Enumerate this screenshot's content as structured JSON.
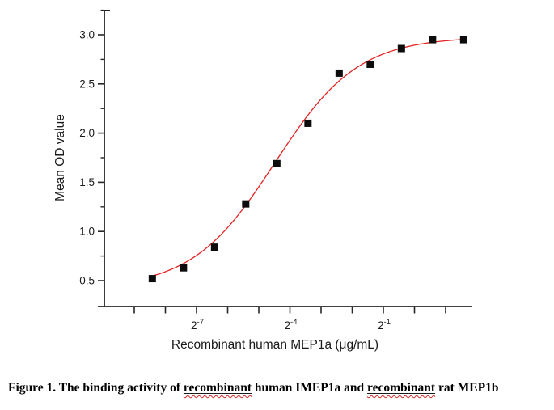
{
  "figure_caption": {
    "part1": "Figure 1. The binding activity of ",
    "flagged_word_1": "recombinant",
    "part2": " human IMEP1a and ",
    "flagged_word_2": "recombinant",
    "part3": " rat MEP1b",
    "squiggle_color": "#d42a2a"
  },
  "chart_data": {
    "type": "scatter",
    "title": "",
    "xlabel": "Recombinant human MEP1a (μg/mL)",
    "ylabel": "Mean OD value",
    "x_scale": "log2",
    "grid": "off",
    "legend": "none",
    "xlim_log2": [
      -10.2,
      1.85
    ],
    "ylim": [
      0.23,
      3.25
    ],
    "x_axis": {
      "tick_log2": [
        -9,
        -8,
        -7,
        -6,
        -5,
        -4,
        -3,
        -2,
        -1,
        0,
        1
      ],
      "labeled_ticks": [
        {
          "log2": -7,
          "base": "2",
          "exp": "-7"
        },
        {
          "log2": -4,
          "base": "2",
          "exp": "-4"
        },
        {
          "log2": -1,
          "base": "2",
          "exp": "-1"
        }
      ]
    },
    "y_axis": {
      "major_ticks": [
        0.5,
        1.0,
        1.5,
        2.0,
        2.5,
        3.0
      ],
      "minor_ticks": [
        0.75,
        1.25,
        1.75,
        2.25,
        2.75,
        3.25
      ]
    },
    "series": [
      {
        "name": "Recombinant human MEP1a",
        "marker": "filled-square",
        "points": [
          {
            "conc_ug_ml": 0.0029,
            "log2_conc": -8.42,
            "od": 0.52
          },
          {
            "conc_ug_ml": 0.0059,
            "log2_conc": -7.42,
            "od": 0.63
          },
          {
            "conc_ug_ml": 0.0117,
            "log2_conc": -6.42,
            "od": 0.84
          },
          {
            "conc_ug_ml": 0.0234,
            "log2_conc": -5.42,
            "od": 1.28
          },
          {
            "conc_ug_ml": 0.0469,
            "log2_conc": -4.42,
            "od": 1.69
          },
          {
            "conc_ug_ml": 0.0938,
            "log2_conc": -3.42,
            "od": 2.1
          },
          {
            "conc_ug_ml": 0.1875,
            "log2_conc": -2.42,
            "od": 2.61
          },
          {
            "conc_ug_ml": 0.375,
            "log2_conc": -1.42,
            "od": 2.7
          },
          {
            "conc_ug_ml": 0.75,
            "log2_conc": -0.42,
            "od": 2.86
          },
          {
            "conc_ug_ml": 1.5,
            "log2_conc": 0.58,
            "od": 2.95
          },
          {
            "conc_ug_ml": 3.0,
            "log2_conc": 1.58,
            "od": 2.95
          }
        ]
      }
    ],
    "fit_curve": {
      "model": "logistic-4PL-log2",
      "bottom": 0.42,
      "top": 2.98,
      "log2_ec50": -4.48,
      "slope": 0.75,
      "color": "#e32222"
    },
    "colors": {
      "axis": "#262626",
      "marker": "#0c0c0c",
      "curve": "#e32222",
      "text": "#1a1a1a"
    }
  }
}
